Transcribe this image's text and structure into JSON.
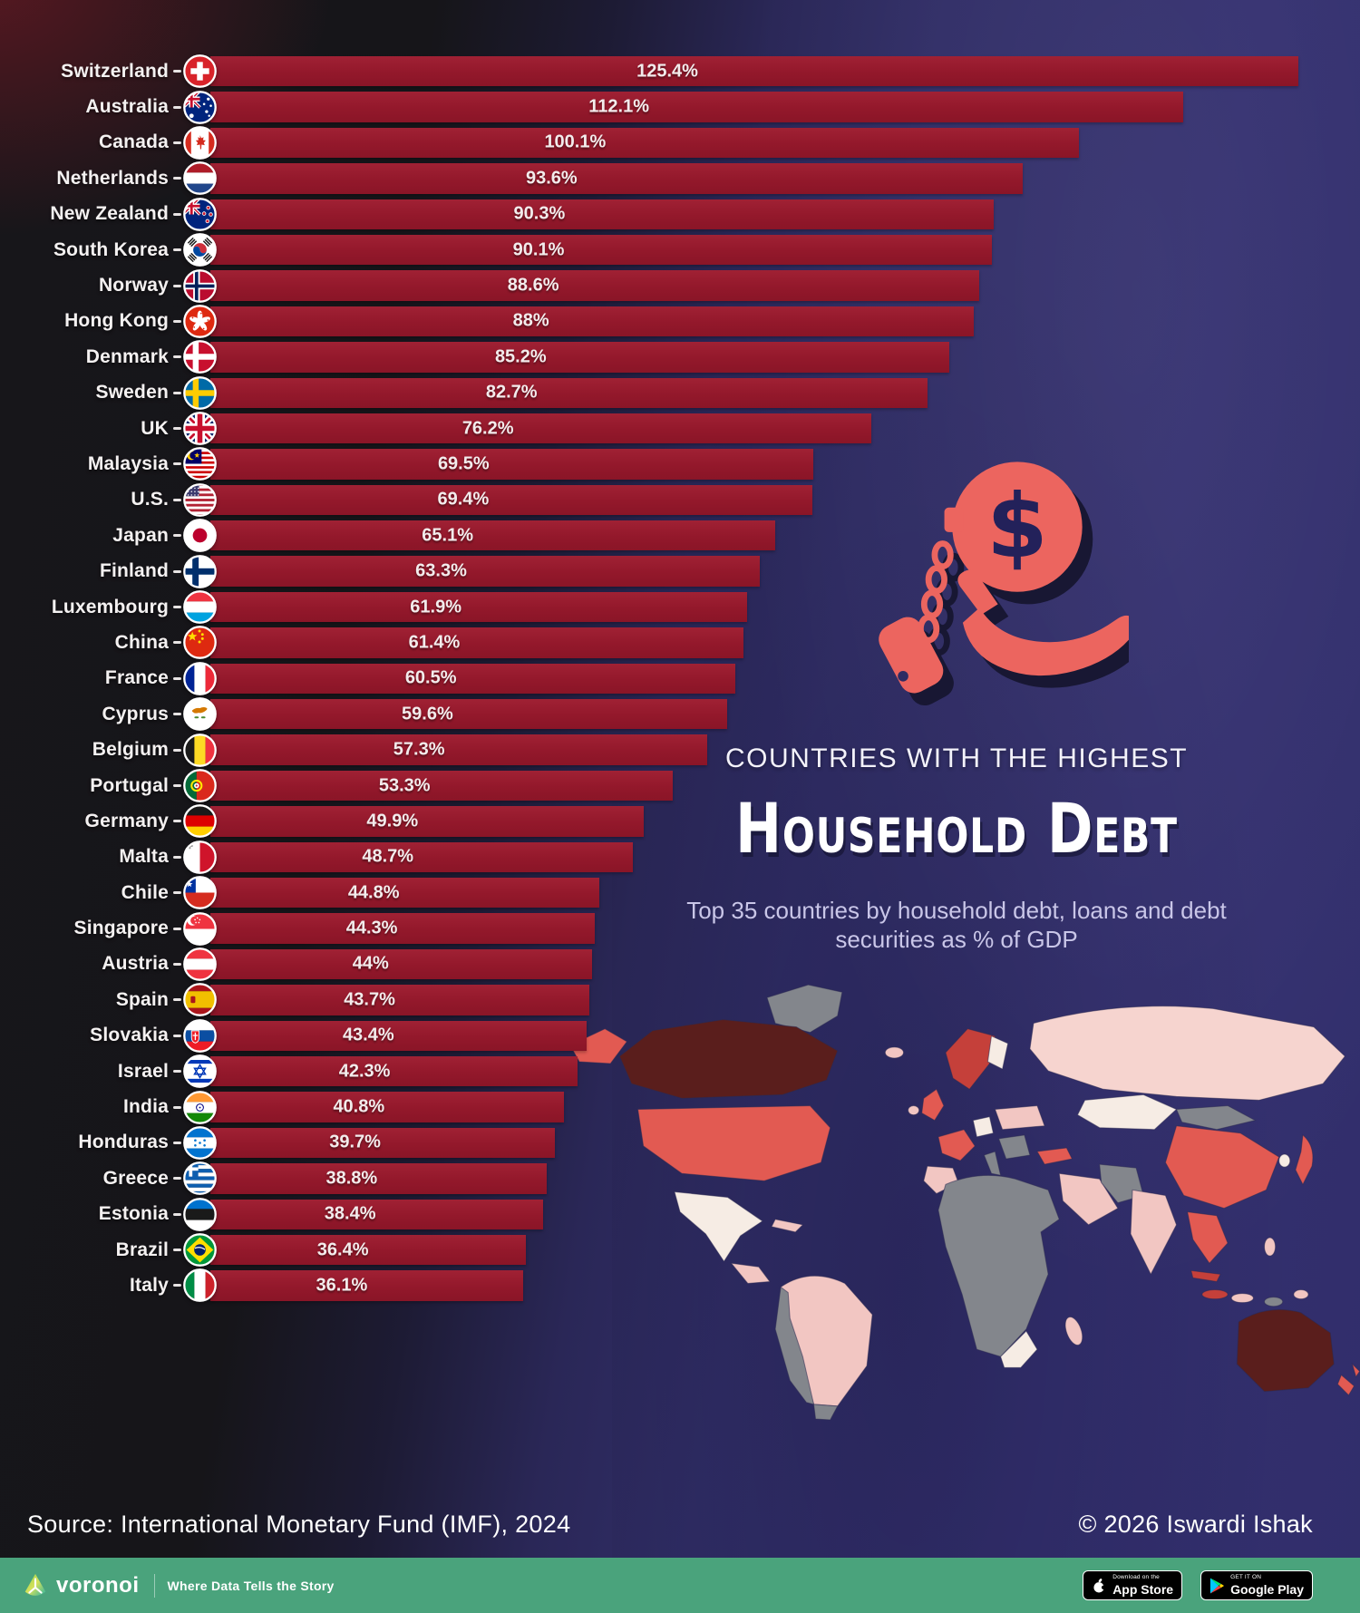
{
  "title": {
    "kicker": "COUNTRIES WITH THE HIGHEST",
    "main": "Household Debt",
    "subtitle": "Top 35 countries by household debt, loans and debt securities as % of GDP"
  },
  "chart_data": {
    "type": "bar",
    "orientation": "horizontal",
    "unit": "% of GDP",
    "max_value": 125.4,
    "categories": [
      "Switzerland",
      "Australia",
      "Canada",
      "Netherlands",
      "New Zealand",
      "South Korea",
      "Norway",
      "Hong Kong",
      "Denmark",
      "Sweden",
      "UK",
      "Malaysia",
      "U.S.",
      "Japan",
      "Finland",
      "Luxembourg",
      "China",
      "France",
      "Cyprus",
      "Belgium",
      "Portugal",
      "Germany",
      "Malta",
      "Chile",
      "Singapore",
      "Austria",
      "Spain",
      "Slovakia",
      "Israel",
      "India",
      "Honduras",
      "Greece",
      "Estonia",
      "Brazil",
      "Italy"
    ],
    "values": [
      125.4,
      112.1,
      100.1,
      93.6,
      90.3,
      90.1,
      88.6,
      88,
      85.2,
      82.7,
      76.2,
      69.5,
      69.4,
      65.1,
      63.3,
      61.9,
      61.4,
      60.5,
      59.6,
      57.3,
      53.3,
      49.9,
      48.7,
      44.8,
      44.3,
      44,
      43.7,
      43.4,
      42.3,
      40.8,
      39.7,
      38.8,
      38.4,
      36.4,
      36.1
    ],
    "labels": [
      "125.4%",
      "112.1%",
      "100.1%",
      "93.6%",
      "90.3%",
      "90.1%",
      "88.6%",
      "88%",
      "85.2%",
      "82.7%",
      "76.2%",
      "69.5%",
      "69.4%",
      "65.1%",
      "63.3%",
      "61.9%",
      "61.4%",
      "60.5%",
      "59.6%",
      "57.3%",
      "53.3%",
      "49.9%",
      "48.7%",
      "44.8%",
      "44.3%",
      "44%",
      "43.7%",
      "43.4%",
      "42.3%",
      "40.8%",
      "39.7%",
      "38.8%",
      "38.4%",
      "36.4%",
      "36.1%"
    ],
    "flags": [
      "ch",
      "au",
      "ca",
      "nl",
      "nz",
      "kr",
      "no",
      "hk",
      "dk",
      "se",
      "uk",
      "my",
      "us",
      "jp",
      "fi",
      "lu",
      "cn",
      "fr",
      "cy",
      "be",
      "pt",
      "de",
      "mt",
      "cl",
      "sg",
      "at",
      "es",
      "sk",
      "il",
      "in",
      "hn",
      "gr",
      "ee",
      "br",
      "it"
    ],
    "legend_position": "none",
    "grid": false
  },
  "source": "Source: International Monetary Fund (IMF), 2024",
  "copyright": "© 2026 Iswardi Ishak",
  "footer": {
    "brand": "voronoi",
    "tagline": "Where Data Tells the Story",
    "badges": [
      {
        "icon": "apple-icon",
        "line1": "Download on the",
        "line2": "App Store"
      },
      {
        "icon": "google-play-icon",
        "line1": "GET IT ON",
        "line2": "Google Play"
      }
    ]
  },
  "colors": {
    "bar": "#93182b",
    "background_left": "#17161a",
    "background_right": "#312e6b",
    "accent_coral": "#ec655f",
    "footer_green": "#4aa37c",
    "subtitle_lavender": "#c9c6e8",
    "map_dark": "#5a1e1c",
    "map_coral": "#e25a52",
    "map_pink": "#f2c6c2",
    "map_gray": "#83868c",
    "map_white": "#f6ece4"
  }
}
